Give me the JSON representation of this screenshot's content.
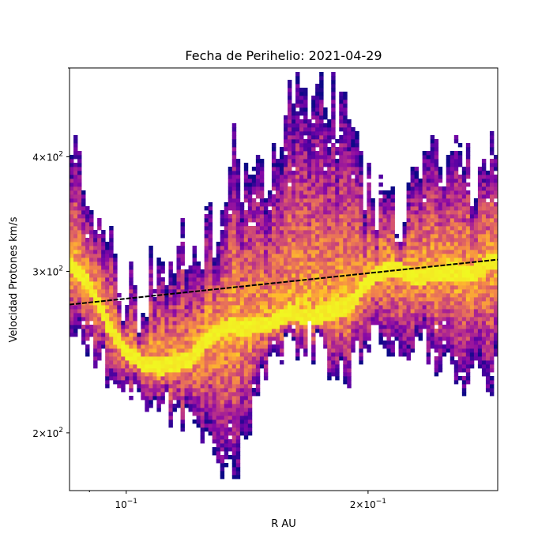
{
  "chart_data": {
    "type": "heatmap",
    "title": "Fecha de Perihelio: 2021-04-29",
    "xlabel": "R  AU",
    "ylabel": "Velocidad Protones  km/s",
    "xscale": "log",
    "yscale": "log",
    "xlim": [
      0.085,
      0.29
    ],
    "ylim": [
      173,
      500
    ],
    "grid": false,
    "colormap": "plasma",
    "xticks": [
      {
        "value": 0.1,
        "base": "10",
        "exp": "−1",
        "mant": ""
      },
      {
        "value": 0.2,
        "base": "10",
        "exp": "−1",
        "mant": "2×"
      }
    ],
    "yticks": [
      {
        "value": 200,
        "base": "10",
        "exp": "2",
        "mant": "2×"
      },
      {
        "value": 300,
        "base": "10",
        "exp": "2",
        "mant": "3×"
      },
      {
        "value": 400,
        "base": "10",
        "exp": "2",
        "mant": "4×"
      }
    ],
    "fit_line": {
      "x": [
        0.085,
        0.29
      ],
      "y": [
        276,
        309
      ],
      "color": "#000000",
      "style": "dashed"
    },
    "density_ridge": {
      "x": [
        0.085,
        0.09,
        0.095,
        0.1,
        0.105,
        0.11,
        0.115,
        0.12,
        0.125,
        0.13,
        0.135,
        0.14,
        0.15,
        0.16,
        0.17,
        0.18,
        0.19,
        0.2,
        0.21,
        0.22,
        0.23,
        0.24,
        0.25,
        0.26,
        0.27,
        0.28,
        0.29
      ],
      "y": [
        305,
        290,
        262,
        245,
        238,
        236,
        238,
        240,
        252,
        258,
        262,
        260,
        263,
        270,
        268,
        270,
        276,
        292,
        302,
        300,
        295,
        298,
        300,
        300,
        298,
        306,
        308
      ],
      "lo": [
        255,
        255,
        240,
        225,
        225,
        225,
        215,
        210,
        205,
        195,
        185,
        195,
        240,
        255,
        258,
        235,
        240,
        255,
        255,
        250,
        255,
        250,
        240,
        235,
        235,
        230,
        240
      ],
      "hi": [
        430,
        330,
        320,
        290,
        285,
        310,
        330,
        320,
        330,
        345,
        420,
        380,
        400,
        480,
        470,
        480,
        420,
        380,
        360,
        350,
        380,
        420,
        410,
        395,
        385,
        400,
        410
      ]
    }
  }
}
